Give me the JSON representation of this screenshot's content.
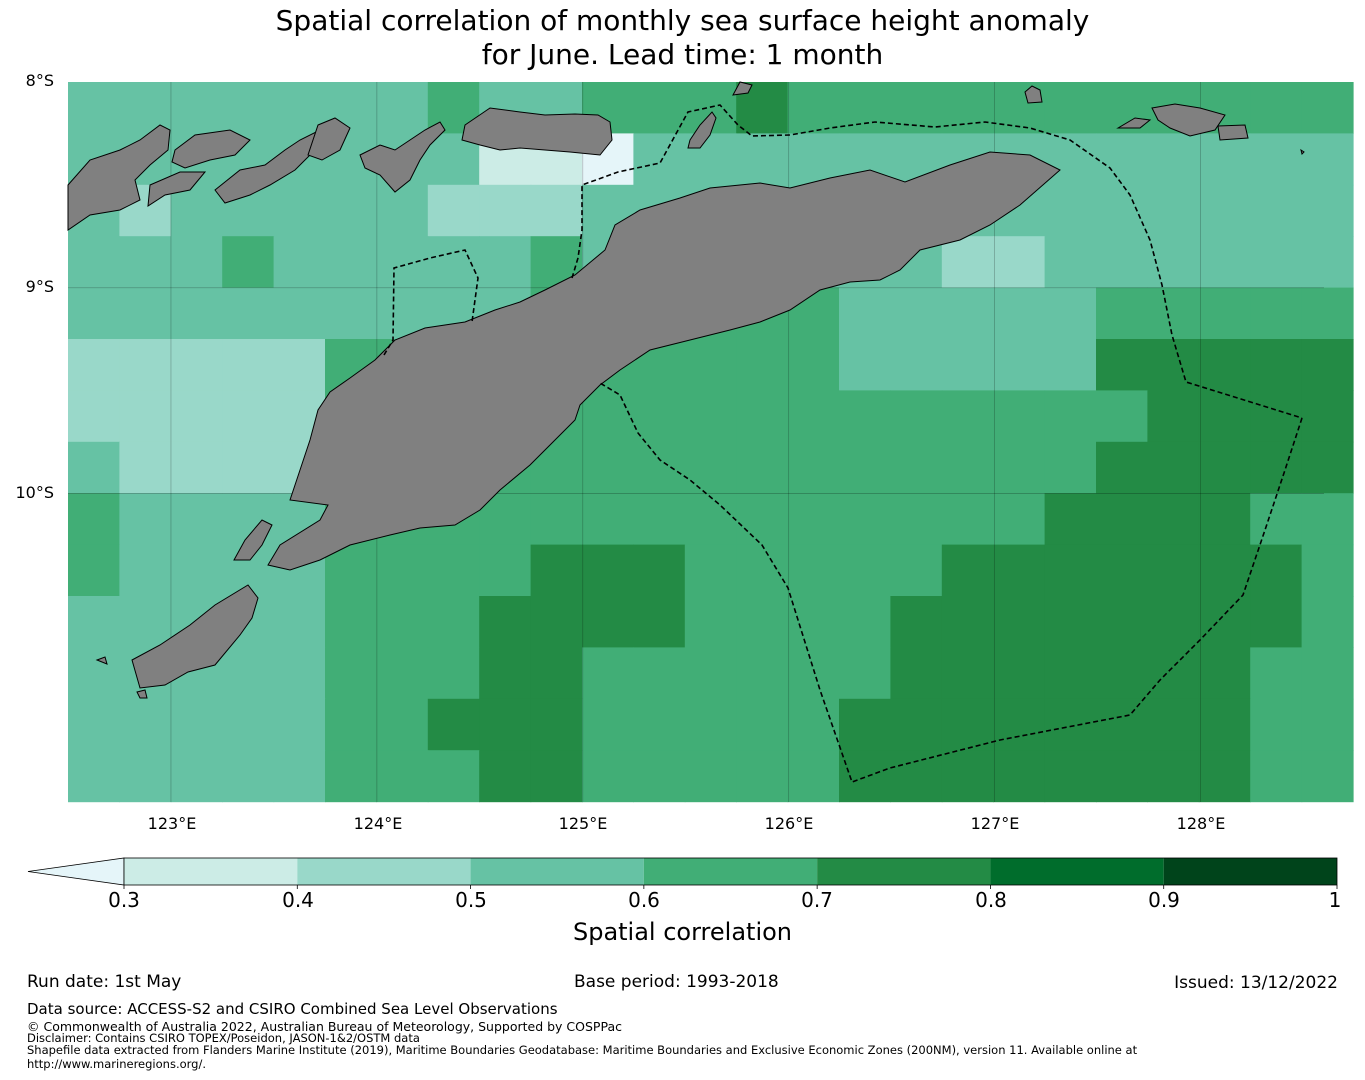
{
  "title_line1": "Spatial correlation of monthly sea surface height anomaly",
  "title_line2": "for June. Lead time: 1 month",
  "map": {
    "lat_labels": [
      "8°S",
      "9°S",
      "10°S"
    ],
    "lon_labels": [
      "123°E",
      "124°E",
      "125°E",
      "126°E",
      "127°E",
      "128°E"
    ],
    "lat_range": [
      -11.5,
      -8.0
    ],
    "lon_range": [
      122.5,
      128.6
    ],
    "land_color": "#808080"
  },
  "colorbar": {
    "label": "Spatial correlation",
    "ticks": [
      "0.3",
      "0.4",
      "0.5",
      "0.6",
      "0.7",
      "0.8",
      "0.9",
      "1"
    ],
    "extend": "min",
    "under_color": "#e5f5f9",
    "colors": [
      "#ccece6",
      "#99d8c9",
      "#66c2a4",
      "#41ae76",
      "#238b45",
      "#006d2c",
      "#00441b"
    ]
  },
  "footer": {
    "run_date": "Run date: 1st May",
    "base_period": "Base period: 1993-2018",
    "issued": "Issued: 13/12/2022",
    "data_source": "Data source: ACCESS-S2 and CSIRO Combined Sea Level Observations",
    "copyright": "© Commonwealth of Australia 2022, Australian Bureau of Meteorology, Supported by COSPPac",
    "disclaimer": "Disclaimer: Contains CSIRO TOPEX/Poseidon, JASON-1&2/OSTM data",
    "shapefile_1": "Shapefile data extracted from Flanders Marine Institute (2019), Maritime Boundaries Geodatabase: Maritime Boundaries and Exclusive Economic Zones (200NM), version 11. Available online at",
    "shapefile_2": "http://www.marineregions.org/."
  }
}
